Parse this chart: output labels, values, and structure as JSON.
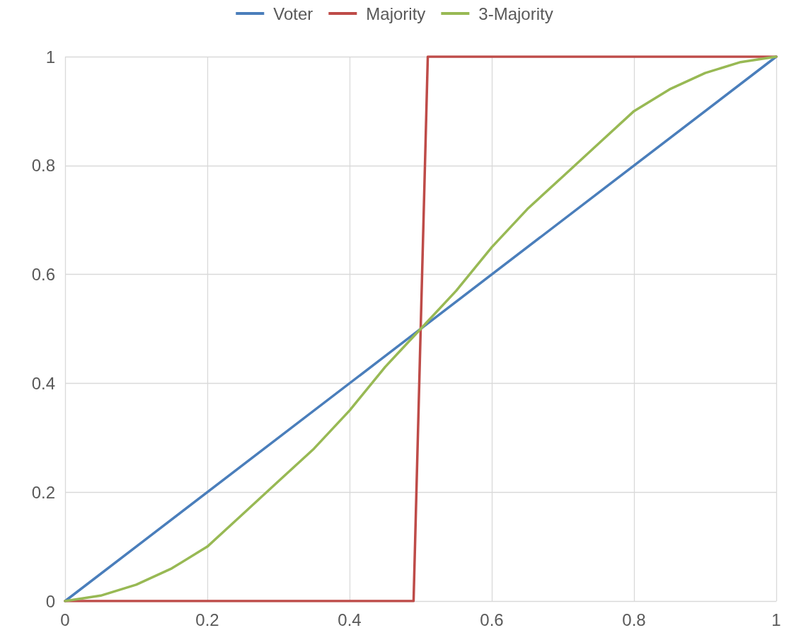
{
  "chart_data": {
    "type": "line",
    "series": [
      {
        "name": "Voter",
        "color": "#4a7ebb",
        "x": [
          0,
          1
        ],
        "values": [
          0,
          1
        ]
      },
      {
        "name": "Majority",
        "color": "#be4b48",
        "x": [
          0,
          0.49,
          0.51,
          1
        ],
        "values": [
          0,
          0,
          1,
          1
        ]
      },
      {
        "name": "3-Majority",
        "color": "#98b954",
        "x": [
          0,
          0.05,
          0.1,
          0.15,
          0.2,
          0.25,
          0.3,
          0.35,
          0.4,
          0.45,
          0.5,
          0.55,
          0.6,
          0.65,
          0.7,
          0.75,
          0.8,
          0.85,
          0.9,
          0.95,
          1
        ],
        "values": [
          0,
          0.01,
          0.03,
          0.06,
          0.1,
          0.16,
          0.22,
          0.28,
          0.35,
          0.43,
          0.5,
          0.57,
          0.65,
          0.72,
          0.78,
          0.84,
          0.9,
          0.94,
          0.97,
          0.99,
          1
        ]
      }
    ],
    "xlim": [
      0,
      1
    ],
    "xticks": [
      0,
      0.2,
      0.4,
      0.6,
      0.8,
      1
    ],
    "ylim": [
      0,
      1
    ],
    "yticks": [
      0,
      0.2,
      0.4,
      0.6,
      0.8,
      1
    ],
    "grid": true,
    "legend": "top",
    "marker": "none",
    "line_style": "solid"
  }
}
